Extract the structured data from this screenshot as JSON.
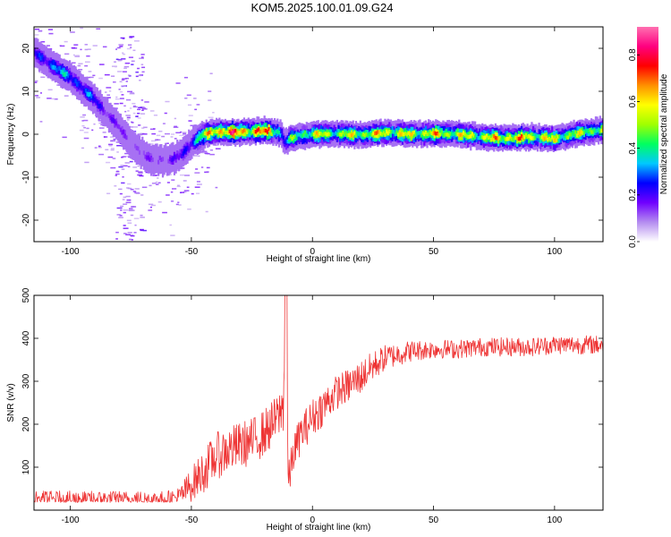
{
  "title": "KOM5.2025.100.01.09.G24",
  "chart_data": [
    {
      "type": "heatmap",
      "xlabel": "Height of straight line (km)",
      "ylabel": "Frequency (Hz)",
      "xlim": [
        -115,
        120
      ],
      "ylim": [
        -25,
        25
      ],
      "xticks": [
        -100,
        -50,
        0,
        50,
        100
      ],
      "yticks": [
        -20,
        -10,
        0,
        10,
        20
      ],
      "colorbar": {
        "label": "Normalized spectral amplitude",
        "range": [
          0,
          0.92
        ],
        "ticks": [
          0.0,
          0.2,
          0.4,
          0.6,
          0.8
        ],
        "colors": [
          "#ffffff",
          "#b48cf0",
          "#7000ff",
          "#0000ff",
          "#00c8ff",
          "#00ff60",
          "#a0ff00",
          "#ffff00",
          "#ff9000",
          "#ff0000",
          "#ff0080",
          "#ff70b0"
        ]
      },
      "ridge": {
        "x": [
          -115,
          -108,
          -100,
          -92,
          -84,
          -78,
          -72,
          -66,
          -60,
          -55,
          -50,
          -45,
          -40,
          -30,
          -20,
          -15,
          -13,
          -12,
          -10,
          -5,
          0,
          10,
          20,
          30,
          40,
          50,
          60,
          70,
          80,
          90,
          100,
          110,
          120
        ],
        "y": [
          19,
          16,
          13,
          9,
          4,
          0,
          -4,
          -6,
          -6,
          -5,
          -2,
          0,
          0.5,
          0.5,
          0.8,
          0.5,
          0,
          -2,
          -1,
          -0.3,
          0,
          0.2,
          -0.2,
          0.4,
          0,
          0.2,
          0,
          -0.6,
          -1.0,
          -0.6,
          -1.0,
          0.3,
          1.0
        ],
        "amplitude": [
          0.25,
          0.35,
          0.35,
          0.3,
          0.2,
          0.15,
          0.15,
          0.15,
          0.18,
          0.2,
          0.35,
          0.55,
          0.8,
          0.75,
          0.75,
          0.6,
          0.3,
          0.3,
          0.45,
          0.5,
          0.6,
          0.55,
          0.6,
          0.65,
          0.6,
          0.65,
          0.6,
          0.6,
          0.7,
          0.65,
          0.6,
          0.55,
          0.6
        ]
      }
    },
    {
      "type": "line",
      "xlabel": "Height of straight line (km)",
      "ylabel": "SNR (v/v)",
      "xlim": [
        -115,
        120
      ],
      "ylim": [
        0,
        500
      ],
      "xticks": [
        -100,
        -50,
        0,
        50,
        100
      ],
      "yticks": [
        100,
        200,
        300,
        400,
        500
      ],
      "series": [
        {
          "color": "#ee3333",
          "x": [
            -115,
            -100,
            -80,
            -60,
            -55,
            -50,
            -45,
            -40,
            -35,
            -30,
            -25,
            -20,
            -15,
            -12,
            -11,
            -10,
            -8,
            -5,
            0,
            5,
            10,
            15,
            20,
            25,
            30,
            40,
            50,
            60,
            70,
            80,
            90,
            100,
            110,
            120
          ],
          "y": [
            25,
            25,
            25,
            25,
            30,
            60,
            90,
            125,
            140,
            150,
            160,
            180,
            210,
            240,
            500,
            60,
            130,
            175,
            215,
            245,
            275,
            290,
            310,
            335,
            355,
            370,
            375,
            375,
            380,
            380,
            380,
            385,
            385,
            385
          ],
          "noise": [
            20,
            20,
            20,
            20,
            25,
            40,
            50,
            55,
            55,
            55,
            55,
            55,
            55,
            60,
            0,
            45,
            45,
            45,
            45,
            45,
            40,
            40,
            40,
            35,
            30,
            25,
            22,
            22,
            22,
            22,
            22,
            22,
            22,
            22
          ]
        }
      ]
    }
  ]
}
